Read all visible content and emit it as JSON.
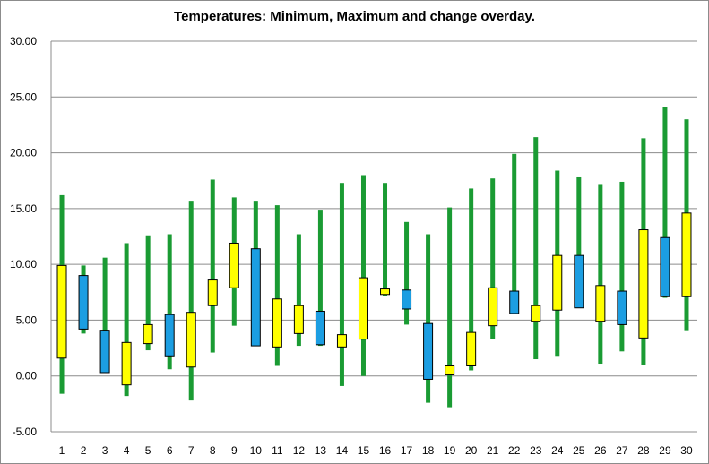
{
  "chart_data": {
    "type": "candlestick",
    "title": "Temperatures:  Minimum, Maximum and change overday.",
    "xlabel": "",
    "ylabel": "",
    "ylim": [
      -5,
      30
    ],
    "y_ticks": [
      "-5.00",
      "0.00",
      "5.00",
      "10.00",
      "15.00",
      "20.00",
      "25.00",
      "30.00"
    ],
    "categories": [
      "1",
      "2",
      "3",
      "4",
      "5",
      "6",
      "7",
      "8",
      "9",
      "10",
      "11",
      "12",
      "13",
      "14",
      "15",
      "16",
      "17",
      "18",
      "19",
      "20",
      "21",
      "22",
      "23",
      "24",
      "25",
      "26",
      "27",
      "28",
      "29",
      "30"
    ],
    "low": [
      -1.6,
      3.8,
      0.3,
      -1.8,
      2.3,
      0.6,
      -2.2,
      2.1,
      4.5,
      2.7,
      0.9,
      2.7,
      2.7,
      -0.9,
      0.0,
      7.2,
      4.6,
      -2.4,
      -2.8,
      0.5,
      3.3,
      5.6,
      1.5,
      1.8,
      6.1,
      1.1,
      2.2,
      1.0,
      7.0,
      4.1
    ],
    "high": [
      16.2,
      9.9,
      10.6,
      11.9,
      12.6,
      12.7,
      15.7,
      17.6,
      16.0,
      15.7,
      15.3,
      12.7,
      14.9,
      17.3,
      18.0,
      17.3,
      13.8,
      12.7,
      15.1,
      16.8,
      17.7,
      19.9,
      21.4,
      18.4,
      17.8,
      17.2,
      17.4,
      21.3,
      24.1,
      23.0
    ],
    "body_low": [
      1.6,
      4.2,
      0.3,
      -0.8,
      2.9,
      1.8,
      0.8,
      6.3,
      7.9,
      2.7,
      2.6,
      3.8,
      2.8,
      2.6,
      3.3,
      7.3,
      6.0,
      -0.3,
      0.1,
      0.9,
      4.5,
      5.6,
      4.9,
      5.9,
      6.1,
      4.9,
      4.6,
      3.4,
      7.1,
      7.1
    ],
    "body_high": [
      9.9,
      9.0,
      4.1,
      3.0,
      4.6,
      5.5,
      5.7,
      8.6,
      11.9,
      11.4,
      6.9,
      6.3,
      5.8,
      3.7,
      8.8,
      7.8,
      7.7,
      4.7,
      0.9,
      3.9,
      7.9,
      7.6,
      6.3,
      10.8,
      10.8,
      8.1,
      7.6,
      13.1,
      12.4,
      14.6
    ],
    "body_color": [
      "yellow",
      "blue",
      "blue",
      "yellow",
      "yellow",
      "blue",
      "yellow",
      "yellow",
      "yellow",
      "blue",
      "yellow",
      "yellow",
      "blue",
      "yellow",
      "yellow",
      "yellow",
      "blue",
      "blue",
      "yellow",
      "yellow",
      "yellow",
      "blue",
      "yellow",
      "yellow",
      "blue",
      "yellow",
      "blue",
      "yellow",
      "blue",
      "yellow"
    ],
    "colors": {
      "yellow": "#ffff00",
      "blue": "#1c9ee2",
      "wick": "#1a9b33",
      "outline": "#000000",
      "gridline": "#8c8c8c",
      "axis": "#8c8c8c"
    },
    "grid": true,
    "legend": "none"
  }
}
